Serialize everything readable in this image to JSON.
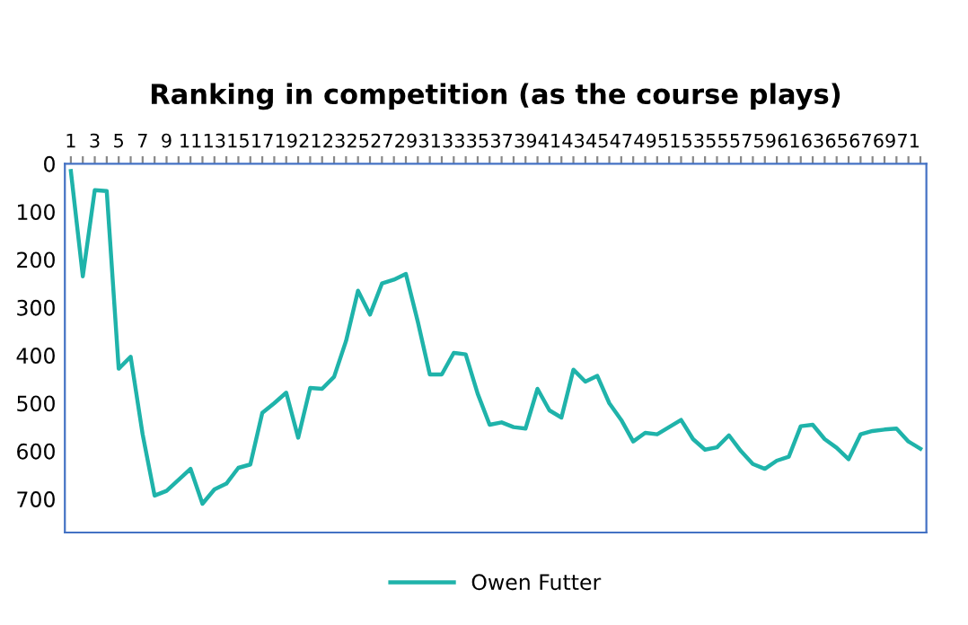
{
  "chart_data": {
    "type": "line",
    "title": "Ranking in competition (as the course plays)",
    "categories": [
      "1",
      null,
      "3",
      null,
      "5",
      null,
      "7",
      null,
      "9",
      null,
      "11",
      null,
      "13",
      null,
      "15",
      null,
      "17",
      null,
      "19",
      null,
      "21",
      null,
      "23",
      null,
      "25",
      null,
      "27",
      null,
      "29",
      null,
      "31",
      null,
      "33",
      null,
      "35",
      null,
      "37",
      null,
      "39",
      null,
      "41",
      null,
      "43",
      null,
      "45",
      null,
      "47",
      null,
      "49",
      null,
      "51",
      null,
      "53",
      null,
      "55",
      null,
      "57",
      null,
      "59",
      null,
      "61",
      null,
      "63",
      null,
      "65",
      null,
      "67",
      null,
      "69",
      null,
      "71",
      null
    ],
    "series": [
      {
        "name": "Owen Futter",
        "color": "#1fb3aa",
        "values": [
          15,
          235,
          55,
          57,
          428,
          403,
          565,
          693,
          683,
          660,
          637,
          710,
          680,
          668,
          635,
          628,
          520,
          500,
          478,
          572,
          468,
          470,
          445,
          370,
          265,
          315,
          250,
          242,
          230,
          330,
          440,
          440,
          395,
          398,
          480,
          545,
          540,
          550,
          553,
          470,
          515,
          530,
          430,
          455,
          443,
          500,
          535,
          580,
          562,
          565,
          550,
          535,
          575,
          597,
          592,
          567,
          600,
          627,
          637,
          620,
          612,
          548,
          545,
          575,
          593,
          617,
          565,
          558,
          555,
          553,
          580,
          595
        ]
      }
    ],
    "ylim": [
      770,
      0
    ],
    "yticks": [
      0,
      100,
      200,
      300,
      400,
      500,
      600,
      700
    ],
    "grid": false,
    "legend": "bottom",
    "marker": "none",
    "line_style": "solid"
  }
}
